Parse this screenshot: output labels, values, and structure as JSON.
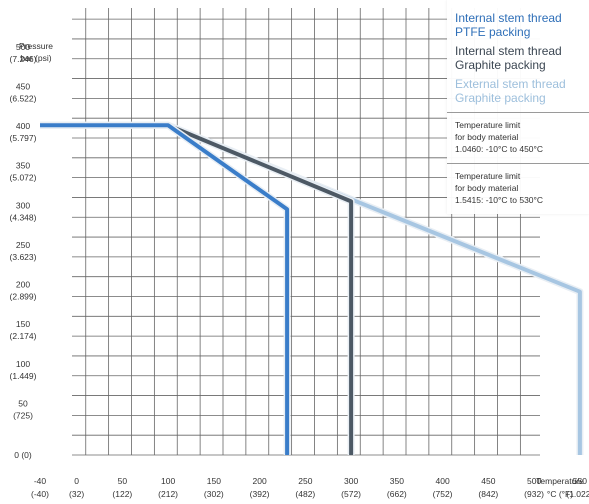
{
  "chart_data": {
    "type": "line",
    "xlabel": "Temperature",
    "xlabel_units": "°C (°F)",
    "ylabel": "Pressure",
    "ylabel_units": "bar (psi)",
    "xlim": [
      -40,
      550
    ],
    "ylim": [
      0,
      500
    ],
    "x_ticks": [
      {
        "value": -40,
        "label": "-40",
        "sub": "(-40)"
      },
      {
        "value": 0,
        "label": "0",
        "sub": "(32)"
      },
      {
        "value": 50,
        "label": "50",
        "sub": "(122)"
      },
      {
        "value": 100,
        "label": "100",
        "sub": "(212)"
      },
      {
        "value": 150,
        "label": "150",
        "sub": "(302)"
      },
      {
        "value": 200,
        "label": "200",
        "sub": "(392)"
      },
      {
        "value": 250,
        "label": "250",
        "sub": "(482)"
      },
      {
        "value": 300,
        "label": "300",
        "sub": "(572)"
      },
      {
        "value": 350,
        "label": "350",
        "sub": "(662)"
      },
      {
        "value": 400,
        "label": "400",
        "sub": "(752)"
      },
      {
        "value": 450,
        "label": "450",
        "sub": "(842)"
      },
      {
        "value": 500,
        "label": "500",
        "sub": "(932)"
      },
      {
        "value": 550,
        "label": "550",
        "sub": "(1.022)"
      }
    ],
    "y_ticks": [
      {
        "value": 0,
        "label": "0 (0)"
      },
      {
        "value": 50,
        "label": "50",
        "sub": "(725)"
      },
      {
        "value": 100,
        "label": "100",
        "sub": "(1.449)"
      },
      {
        "value": 150,
        "label": "150",
        "sub": "(2.174)"
      },
      {
        "value": 200,
        "label": "200",
        "sub": "(2.899)"
      },
      {
        "value": 250,
        "label": "250",
        "sub": "(3.623)"
      },
      {
        "value": 300,
        "label": "300",
        "sub": "(4.348)"
      },
      {
        "value": 350,
        "label": "350",
        "sub": "(5.072)"
      },
      {
        "value": 400,
        "label": "400",
        "sub": "(5.797)"
      },
      {
        "value": 450,
        "label": "450",
        "sub": "(6.522)"
      },
      {
        "value": 500,
        "label": "500",
        "sub": "(7.246)"
      }
    ],
    "grid": true,
    "legend_position": "top-right",
    "series": [
      {
        "name": "Internal stem thread PTFE packing",
        "color": "#3a7dc9",
        "points": [
          [
            -40,
            416
          ],
          [
            100,
            416
          ],
          [
            230,
            310
          ],
          [
            230,
            0
          ]
        ]
      },
      {
        "name": "Internal stem thread Graphite packing",
        "color": "#4d5965",
        "points": [
          [
            -40,
            416
          ],
          [
            100,
            416
          ],
          [
            300,
            320
          ],
          [
            300,
            0
          ]
        ]
      },
      {
        "name": "External stem thread Graphite packing",
        "color": "#a7c6e2",
        "points": [
          [
            -40,
            416
          ],
          [
            100,
            416
          ],
          [
            550,
            206
          ],
          [
            550,
            0
          ]
        ]
      }
    ],
    "notes": [
      {
        "lines": [
          "Temperature limit",
          "for body material",
          "1.0460: -10°C to 450°C"
        ]
      },
      {
        "lines": [
          "Temperature limit",
          "for body material",
          "1.5415: -10°C to 530°C"
        ]
      }
    ]
  },
  "legend": {
    "items": [
      {
        "lines": [
          "Internal stem thread",
          "PTFE packing"
        ],
        "color": "#2f6fb8"
      },
      {
        "lines": [
          "Internal stem thread",
          "Graphite packing"
        ],
        "color": "#3b4652"
      },
      {
        "lines": [
          "External stem thread",
          "Graphite packing"
        ],
        "color": "#9dbfdc"
      }
    ]
  }
}
